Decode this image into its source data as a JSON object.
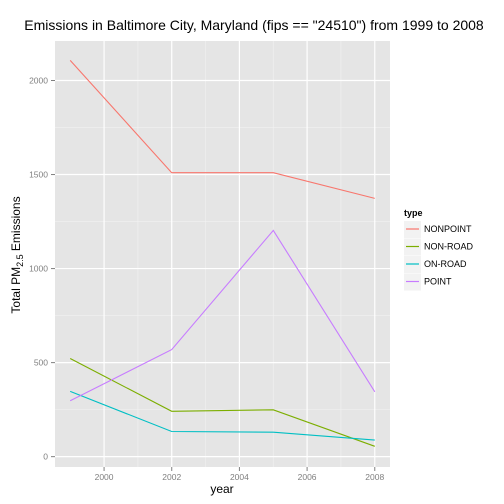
{
  "chart_data": {
    "type": "line",
    "title": "Emissions in Baltimore City, Maryland (fips == \"24510\") from 1999 to 2008",
    "xlabel": "year",
    "ylabel_main": "Total PM",
    "ylabel_sub": "2.5",
    "ylabel_rest": " Emissions",
    "x": [
      1999,
      2002,
      2005,
      2008
    ],
    "xlim": [
      1998.55,
      2008.45
    ],
    "ylim": [
      -55,
      2210
    ],
    "x_ticks": [
      2000,
      2002,
      2004,
      2006,
      2008
    ],
    "y_ticks": [
      0,
      500,
      1000,
      1500,
      2000
    ],
    "grid": true,
    "background": "#e5e5e5",
    "legend_position": "right",
    "legend_title": "type",
    "series": [
      {
        "name": "NONPOINT",
        "color": "#f8766d",
        "values": [
          2107,
          1510,
          1510,
          1373
        ]
      },
      {
        "name": "NON-ROAD",
        "color": "#7cae00",
        "values": [
          522,
          241,
          249,
          55
        ]
      },
      {
        "name": "ON-ROAD",
        "color": "#00bfc4",
        "values": [
          347,
          134,
          130,
          88
        ]
      },
      {
        "name": "POINT",
        "color": "#c77cff",
        "values": [
          297,
          569,
          1203,
          345
        ]
      }
    ]
  }
}
